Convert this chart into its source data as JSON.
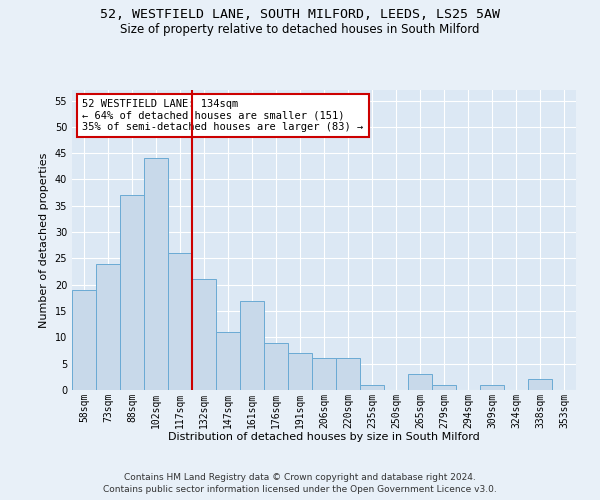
{
  "title_line1": "52, WESTFIELD LANE, SOUTH MILFORD, LEEDS, LS25 5AW",
  "title_line2": "Size of property relative to detached houses in South Milford",
  "xlabel": "Distribution of detached houses by size in South Milford",
  "ylabel": "Number of detached properties",
  "categories": [
    "58sqm",
    "73sqm",
    "88sqm",
    "102sqm",
    "117sqm",
    "132sqm",
    "147sqm",
    "161sqm",
    "176sqm",
    "191sqm",
    "206sqm",
    "220sqm",
    "235sqm",
    "250sqm",
    "265sqm",
    "279sqm",
    "294sqm",
    "309sqm",
    "324sqm",
    "338sqm",
    "353sqm"
  ],
  "values": [
    19,
    24,
    37,
    44,
    26,
    21,
    11,
    17,
    9,
    7,
    6,
    6,
    1,
    0,
    3,
    1,
    0,
    1,
    0,
    2,
    0
  ],
  "bar_color": "#c8d9ea",
  "bar_edge_color": "#6aaad4",
  "vline_x": 5,
  "vline_color": "#cc0000",
  "annotation_text": "52 WESTFIELD LANE: 134sqm\n← 64% of detached houses are smaller (151)\n35% of semi-detached houses are larger (83) →",
  "annotation_box_color": "#ffffff",
  "annotation_box_edge": "#cc0000",
  "ylim": [
    0,
    57
  ],
  "yticks": [
    0,
    5,
    10,
    15,
    20,
    25,
    30,
    35,
    40,
    45,
    50,
    55
  ],
  "background_color": "#e8f0f8",
  "plot_bg_color": "#dce8f4",
  "footer_line1": "Contains HM Land Registry data © Crown copyright and database right 2024.",
  "footer_line2": "Contains public sector information licensed under the Open Government Licence v3.0.",
  "title_fontsize": 9.5,
  "subtitle_fontsize": 8.5,
  "axis_label_fontsize": 8,
  "tick_fontsize": 7,
  "annotation_fontsize": 7.5,
  "footer_fontsize": 6.5
}
